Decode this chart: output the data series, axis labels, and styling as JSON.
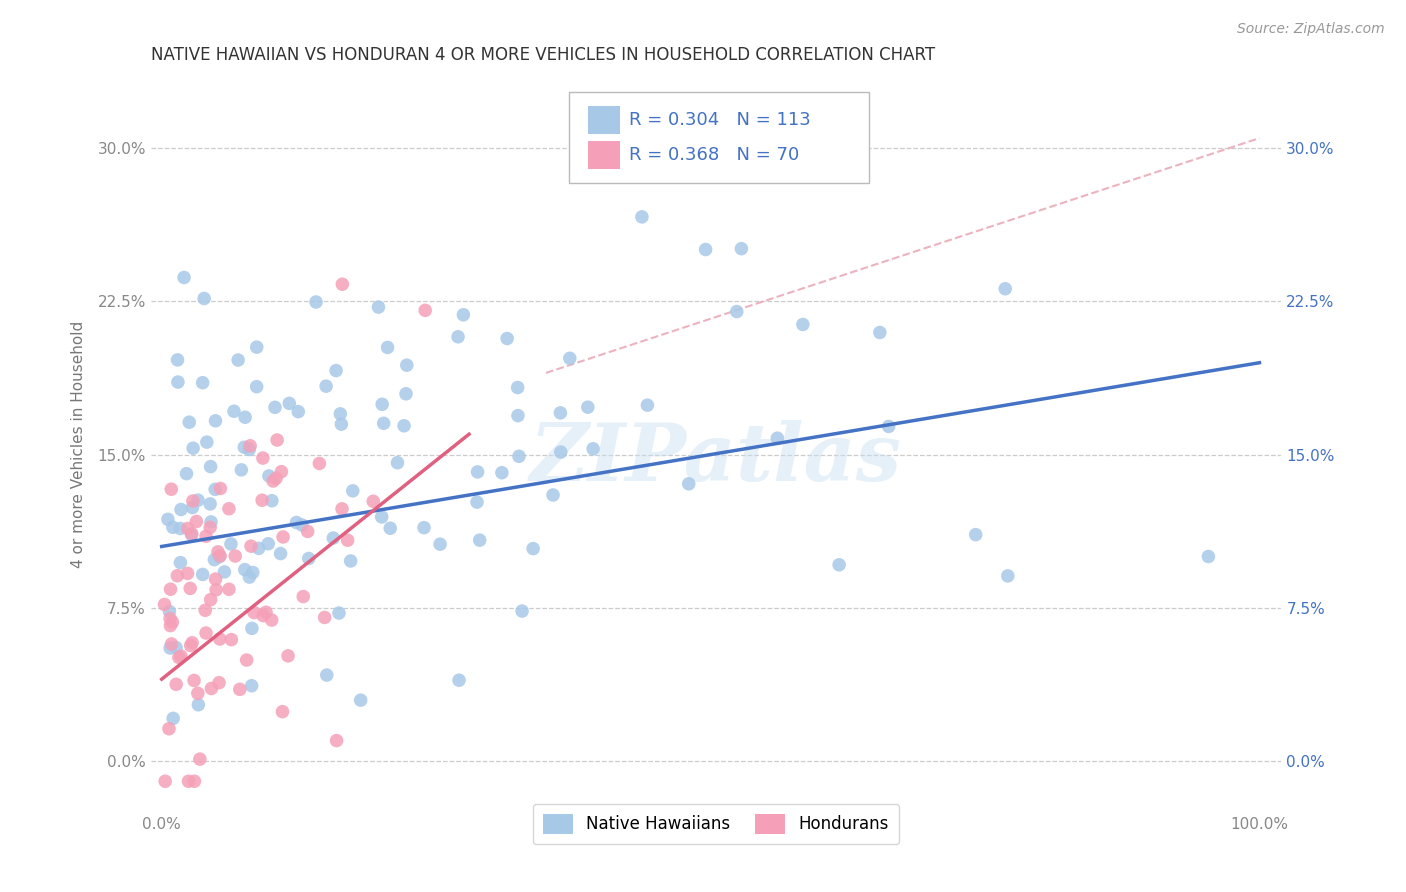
{
  "title": "NATIVE HAWAIIAN VS HONDURAN 4 OR MORE VEHICLES IN HOUSEHOLD CORRELATION CHART",
  "source": "Source: ZipAtlas.com",
  "ylabel": "4 or more Vehicles in Household",
  "xlim": [
    -0.01,
    1.02
  ],
  "ylim": [
    -0.025,
    0.335
  ],
  "xtick_positions": [
    0.0,
    1.0
  ],
  "xtick_labels": [
    "0.0%",
    "100.0%"
  ],
  "yticks": [
    0.0,
    0.075,
    0.15,
    0.225,
    0.3
  ],
  "ytick_labels": [
    "0.0%",
    "7.5%",
    "15.0%",
    "22.5%",
    "30.0%"
  ],
  "r_hawaiian": 0.304,
  "n_hawaiian": 113,
  "r_honduran": 0.368,
  "n_honduran": 70,
  "color_hawaiian": "#a8c8e8",
  "color_honduran": "#f5a0b8",
  "line_color_hawaiian": "#4472c4",
  "line_color_honduran": "#e06080",
  "line_color_dashed": "#e8a0b0",
  "watermark": "ZIPatlas",
  "haw_line_x0": 0.0,
  "haw_line_y0": 0.105,
  "haw_line_x1": 1.0,
  "haw_line_y1": 0.195,
  "hon_line_x0": 0.0,
  "hon_line_y0": 0.04,
  "hon_line_x1": 0.28,
  "hon_line_y1": 0.16,
  "dash_line_x0": 0.35,
  "dash_line_y0": 0.19,
  "dash_line_x1": 1.0,
  "dash_line_y1": 0.305
}
